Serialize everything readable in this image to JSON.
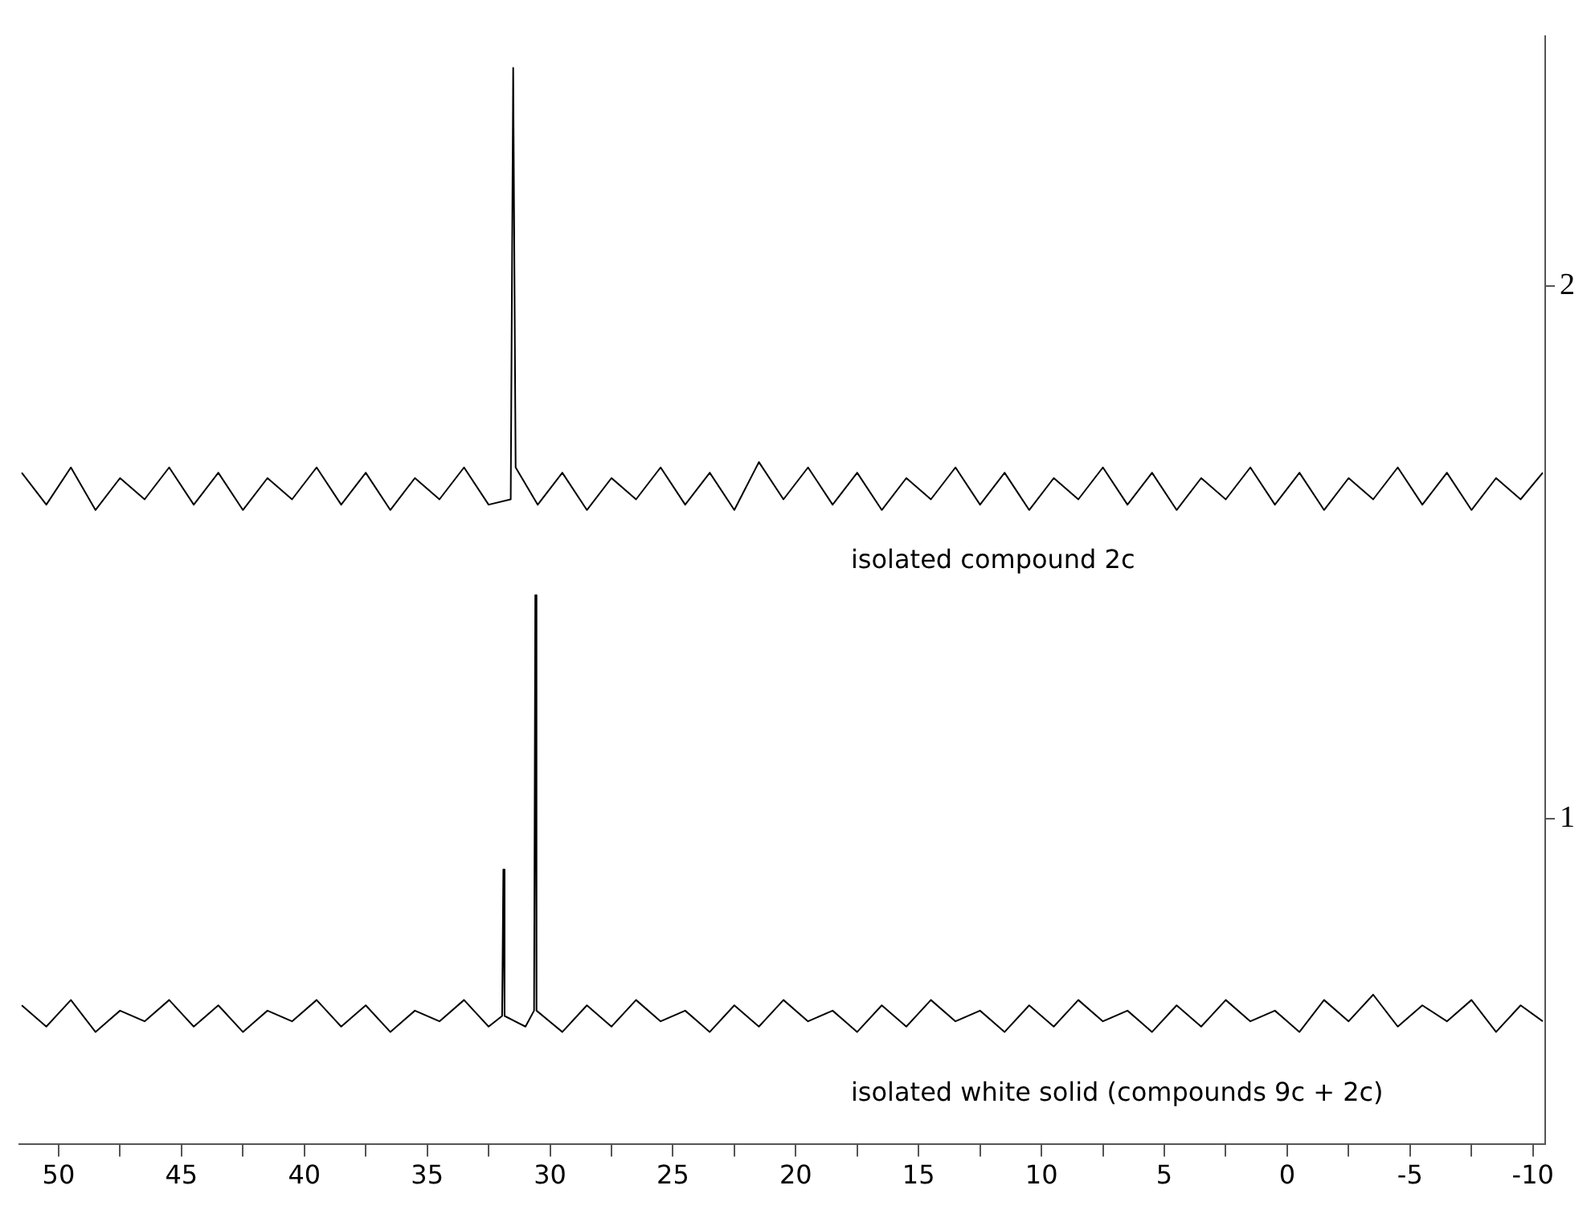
{
  "chart_data": {
    "type": "line",
    "xlim": [
      51.6,
      -10.5
    ],
    "ylim": [
      0.39,
      2.47
    ],
    "xticks": [
      50,
      {
        "value": 47.5,
        "label": null
      },
      45,
      {
        "value": 42.5,
        "label": null
      },
      40,
      {
        "value": 37.5,
        "label": null
      },
      35,
      {
        "value": 32.5,
        "label": null
      },
      30,
      {
        "value": 27.5,
        "label": null
      },
      25,
      {
        "value": 22.5,
        "label": null
      },
      20,
      {
        "value": 17.5,
        "label": null
      },
      15,
      {
        "value": 12.5,
        "label": null
      },
      10,
      {
        "value": 7.5,
        "label": null
      },
      5,
      {
        "value": 2.5,
        "label": null
      },
      0,
      {
        "value": -2.5,
        "label": null
      },
      -5,
      {
        "value": -7.5,
        "label": null
      },
      -10
    ],
    "yticks": [
      1,
      2
    ],
    "series": [
      {
        "name": "isolated compound 2c",
        "color": "#000000",
        "x": [
          51.5,
          50.5,
          49.5,
          48.5,
          47.5,
          46.5,
          45.5,
          44.5,
          43.5,
          42.5,
          41.5,
          40.5,
          39.5,
          38.5,
          37.5,
          36.5,
          35.5,
          34.5,
          33.5,
          32.5,
          31.6,
          31.5,
          31.4,
          30.5,
          29.5,
          28.5,
          27.5,
          26.5,
          25.5,
          24.5,
          23.5,
          22.5,
          21.5,
          20.5,
          19.5,
          18.5,
          17.5,
          16.5,
          15.5,
          14.5,
          13.5,
          12.5,
          11.5,
          10.5,
          9.5,
          8.5,
          7.5,
          6.5,
          5.5,
          4.5,
          3.5,
          2.5,
          1.5,
          0.5,
          -0.5,
          -1.5,
          -2.5,
          -3.5,
          -4.5,
          -5.5,
          -6.5,
          -7.5,
          -8.5,
          -9.5,
          -10.4
        ],
        "values": [
          1.65,
          1.59,
          1.66,
          1.58,
          1.64,
          1.6,
          1.66,
          1.59,
          1.65,
          1.58,
          1.64,
          1.6,
          1.66,
          1.59,
          1.65,
          1.58,
          1.64,
          1.6,
          1.66,
          1.59,
          1.6,
          2.41,
          1.66,
          1.59,
          1.65,
          1.58,
          1.64,
          1.6,
          1.66,
          1.59,
          1.65,
          1.58,
          1.67,
          1.6,
          1.66,
          1.59,
          1.65,
          1.58,
          1.64,
          1.6,
          1.66,
          1.59,
          1.65,
          1.58,
          1.64,
          1.6,
          1.66,
          1.59,
          1.65,
          1.58,
          1.64,
          1.6,
          1.66,
          1.59,
          1.65,
          1.58,
          1.64,
          1.6,
          1.66,
          1.59,
          1.65,
          1.58,
          1.64,
          1.6,
          1.65
        ]
      },
      {
        "name": "isolated white solid (compounds 9c + 2c)",
        "color": "#000000",
        "x": [
          51.5,
          50.5,
          49.5,
          48.5,
          47.5,
          46.5,
          45.5,
          44.5,
          43.5,
          42.5,
          41.5,
          40.5,
          39.5,
          38.5,
          37.5,
          36.5,
          35.5,
          34.5,
          33.5,
          32.5,
          31.95,
          31.9,
          31.85,
          31.0,
          30.65,
          30.6,
          30.55,
          29.5,
          28.5,
          27.5,
          26.5,
          25.5,
          24.5,
          23.5,
          22.5,
          21.5,
          20.5,
          19.5,
          18.5,
          17.5,
          16.5,
          15.5,
          14.5,
          13.5,
          12.5,
          11.5,
          10.5,
          9.5,
          8.5,
          7.5,
          6.5,
          5.5,
          4.5,
          3.5,
          2.5,
          1.5,
          0.5,
          -0.5,
          -1.5,
          -2.5,
          -3.5,
          -4.5,
          -5.5,
          -6.5,
          -7.5,
          -8.5,
          -9.5,
          -10.4
        ],
        "values": [
          0.65,
          0.61,
          0.66,
          0.6,
          0.64,
          0.62,
          0.66,
          0.61,
          0.65,
          0.6,
          0.64,
          0.62,
          0.66,
          0.61,
          0.65,
          0.6,
          0.64,
          0.62,
          0.66,
          0.61,
          0.63,
          0.905,
          0.63,
          0.61,
          0.64,
          1.42,
          0.64,
          0.6,
          0.65,
          0.61,
          0.66,
          0.62,
          0.64,
          0.6,
          0.65,
          0.61,
          0.66,
          0.62,
          0.64,
          0.6,
          0.65,
          0.61,
          0.66,
          0.62,
          0.64,
          0.6,
          0.65,
          0.61,
          0.66,
          0.62,
          0.64,
          0.6,
          0.65,
          0.61,
          0.66,
          0.62,
          0.64,
          0.6,
          0.66,
          0.62,
          0.67,
          0.61,
          0.65,
          0.62,
          0.66,
          0.6,
          0.65,
          0.62
        ]
      }
    ]
  }
}
